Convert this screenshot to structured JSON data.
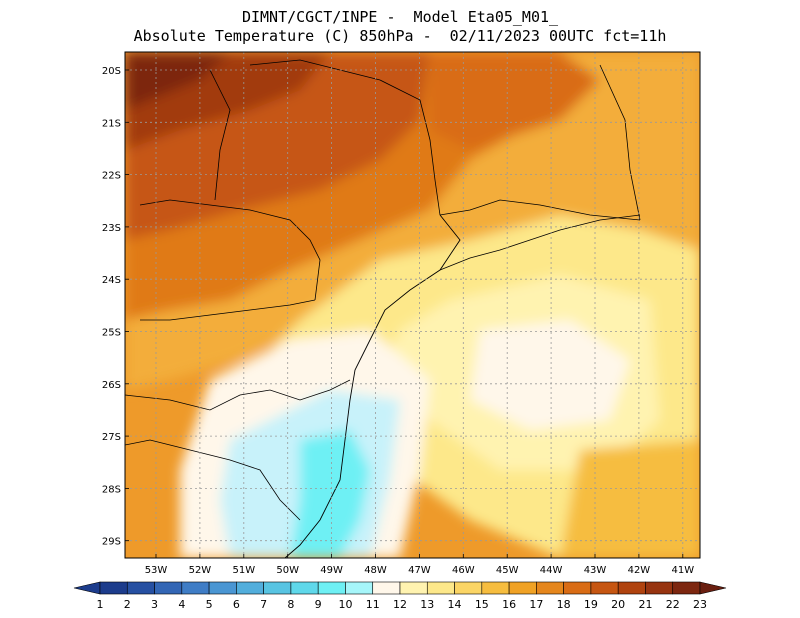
{
  "header": {
    "line1": "DIMNT/CGCT/INPE -  Model Eta05_M01_",
    "line2": "Absolute Temperature (C) 850hPa -  02/11/2023 00UTC fct=11h"
  },
  "axes": {
    "lat_labels": [
      "20S",
      "21S",
      "22S",
      "23S",
      "24S",
      "25S",
      "26S",
      "27S",
      "28S",
      "29S"
    ],
    "lon_labels": [
      "53W",
      "52W",
      "51W",
      "50W",
      "49W",
      "48W",
      "47W",
      "46W",
      "45W",
      "44W",
      "43W",
      "42W",
      "41W"
    ]
  },
  "colorbar": {
    "labels": [
      "1",
      "2",
      "3",
      "4",
      "5",
      "6",
      "7",
      "8",
      "9",
      "10",
      "11",
      "12",
      "13",
      "14",
      "15",
      "16",
      "17",
      "18",
      "19",
      "20",
      "21",
      "22",
      "23"
    ],
    "colors": [
      "#1c3c8c",
      "#2650a2",
      "#3366b5",
      "#3f7dc6",
      "#4a96d3",
      "#52aedc",
      "#58c4e2",
      "#5fd8ea",
      "#6ef0f4",
      "#a6f6fa",
      "#fff7ea",
      "#fff3b0",
      "#fde88a",
      "#fbd565",
      "#f6bd3f",
      "#f0a225",
      "#e5861c",
      "#d96c15",
      "#c65612",
      "#b0430f",
      "#973410",
      "#7d2710",
      "#6a1f10"
    ]
  },
  "map": {
    "bg": "#ee9a2a",
    "grid_color": "#999999"
  }
}
